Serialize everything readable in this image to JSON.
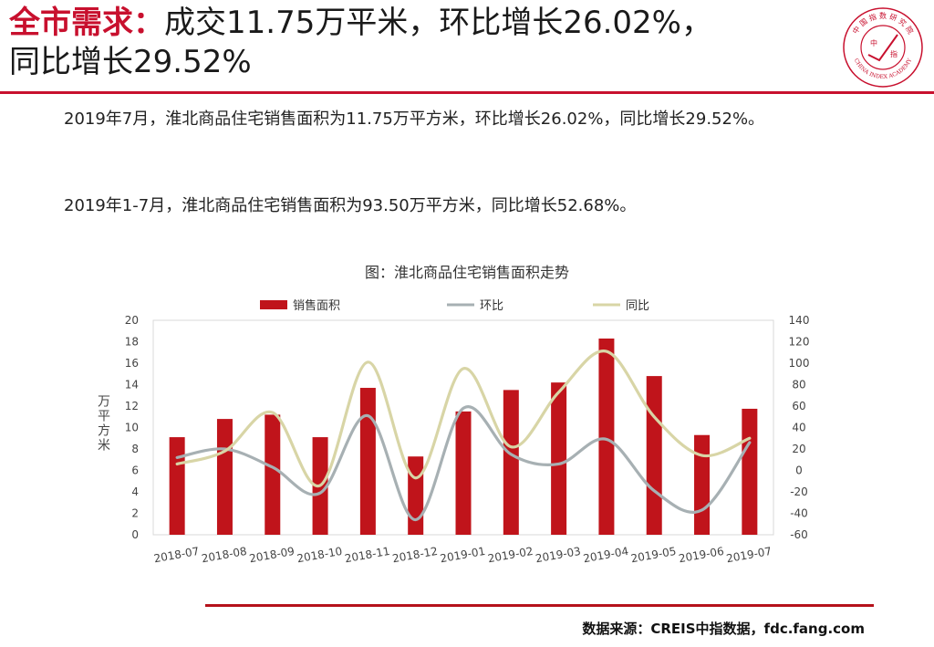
{
  "headline": {
    "key": "全市需求：",
    "line1": "成交11.75万平米，环比增长26.02%，",
    "line2": "同比增长29.52%"
  },
  "logo": {
    "top_text": "中 国 指 数 研 究 院",
    "inner_left": "中",
    "inner_right": "指",
    "bottom_text": "CHINA INDEX ACADEMY",
    "color": "#c8102e"
  },
  "paragraphs": [
    "2019年7月，淮北商品住宅销售面积为11.75万平方米，环比增长26.02%，同比增长29.52%。",
    "2019年1-7月，淮北商品住宅销售面积为93.50万平方米，同比增长52.68%。"
  ],
  "chart_data": {
    "type": "bar",
    "title": "图：淮北商品住宅销售面积走势",
    "categories": [
      "2018-07",
      "2018-08",
      "2018-09",
      "2018-10",
      "2018-11",
      "2018-12",
      "2019-01",
      "2019-02",
      "2019-03",
      "2019-04",
      "2019-05",
      "2019-06",
      "2019-07"
    ],
    "y_left": {
      "label": "万平方米",
      "range": [
        0,
        20
      ],
      "ticks": [
        0,
        2,
        4,
        6,
        8,
        10,
        12,
        14,
        16,
        18,
        20
      ]
    },
    "y_right": {
      "label": "%",
      "range": [
        -60,
        140
      ],
      "ticks": [
        -60,
        -40,
        -20,
        0,
        20,
        40,
        60,
        80,
        100,
        120,
        140
      ]
    },
    "legend_position": "top",
    "grid": false,
    "series": [
      {
        "name": "销售面积",
        "kind": "bar",
        "axis": "left",
        "color": "#c0141b",
        "values": [
          9.1,
          10.8,
          11.2,
          9.1,
          13.7,
          7.3,
          11.5,
          13.5,
          14.2,
          18.3,
          14.8,
          9.3,
          11.75
        ]
      },
      {
        "name": "环比",
        "kind": "line",
        "axis": "right",
        "color": "#a7b0b3",
        "values": [
          12,
          20,
          3,
          -21,
          51,
          -46,
          58,
          15,
          6,
          29,
          -19,
          -37,
          26
        ]
      },
      {
        "name": "同比",
        "kind": "line",
        "axis": "right",
        "color": "#d8d5a6",
        "values": [
          6,
          18,
          54,
          -14,
          101,
          -7,
          95,
          22,
          73,
          111,
          50,
          14,
          30
        ]
      }
    ]
  },
  "source": "数据来源：CREIS中指数据，fdc.fang.com"
}
